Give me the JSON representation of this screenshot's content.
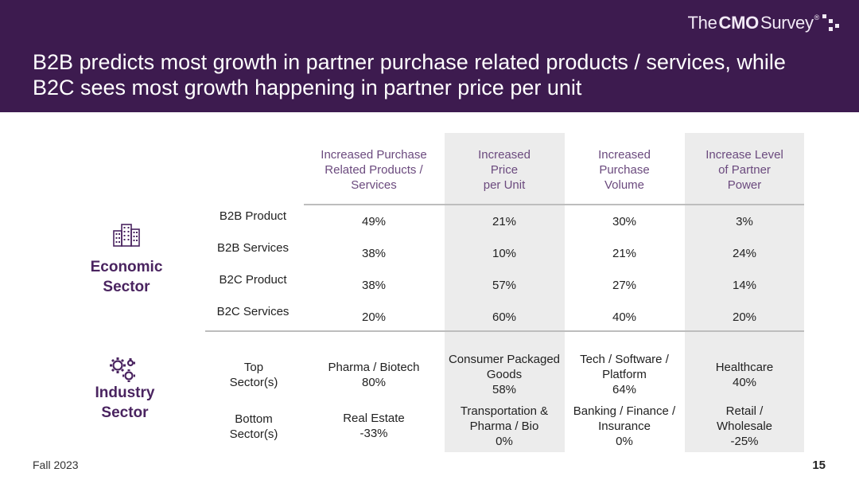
{
  "brand": {
    "the": "The",
    "cmo": "CMO",
    "survey": "Survey",
    "reg": "®"
  },
  "title": {
    "line1": "B2B predicts most growth in partner purchase related products / services, while",
    "line2": "B2C sees most growth happening in partner price per unit"
  },
  "columns": [
    {
      "lines": [
        "Increased Purchase",
        "Related Products /",
        "Services"
      ]
    },
    {
      "lines": [
        "Increased",
        "Price",
        "per Unit"
      ]
    },
    {
      "lines": [
        "Increased",
        "Purchase",
        "Volume"
      ]
    },
    {
      "lines": [
        "Increase Level",
        "of Partner",
        "Power"
      ]
    }
  ],
  "economic": {
    "label_line1": "Economic",
    "label_line2": "Sector",
    "icon": "buildings-icon",
    "rows": [
      {
        "label": "B2B Product",
        "values": [
          "49%",
          "21%",
          "30%",
          "3%"
        ]
      },
      {
        "label": "B2B Services",
        "values": [
          "38%",
          "10%",
          "21%",
          "24%"
        ]
      },
      {
        "label": "B2C Product",
        "values": [
          "38%",
          "57%",
          "27%",
          "14%"
        ]
      },
      {
        "label": "B2C Services",
        "values": [
          "20%",
          "60%",
          "40%",
          "20%"
        ]
      }
    ]
  },
  "industry": {
    "label_line1": "Industry",
    "label_line2": "Sector",
    "icon": "gears-icon",
    "rows": [
      {
        "label_lines": [
          "Top",
          "Sector(s)"
        ],
        "cells": [
          [
            "Pharma / Biotech",
            "80%"
          ],
          [
            "Consumer Packaged",
            "Goods",
            "58%"
          ],
          [
            "Tech / Software /",
            "Platform",
            "64%"
          ],
          [
            "Healthcare",
            "40%"
          ]
        ]
      },
      {
        "label_lines": [
          "Bottom",
          "Sector(s)"
        ],
        "cells": [
          [
            "Real Estate",
            "-33%"
          ],
          [
            "Transportation &",
            "Pharma / Bio",
            "0%"
          ],
          [
            "Banking / Finance /",
            "Insurance",
            "0%"
          ],
          [
            "Retail /",
            "Wholesale",
            "-25%"
          ]
        ]
      }
    ]
  },
  "footer": {
    "left": "Fall 2023",
    "page": "15"
  },
  "colors": {
    "header": "#3d1b4f",
    "accent": "#6b4a7e",
    "sector_label": "#4a2460",
    "shade": "#ececec"
  }
}
